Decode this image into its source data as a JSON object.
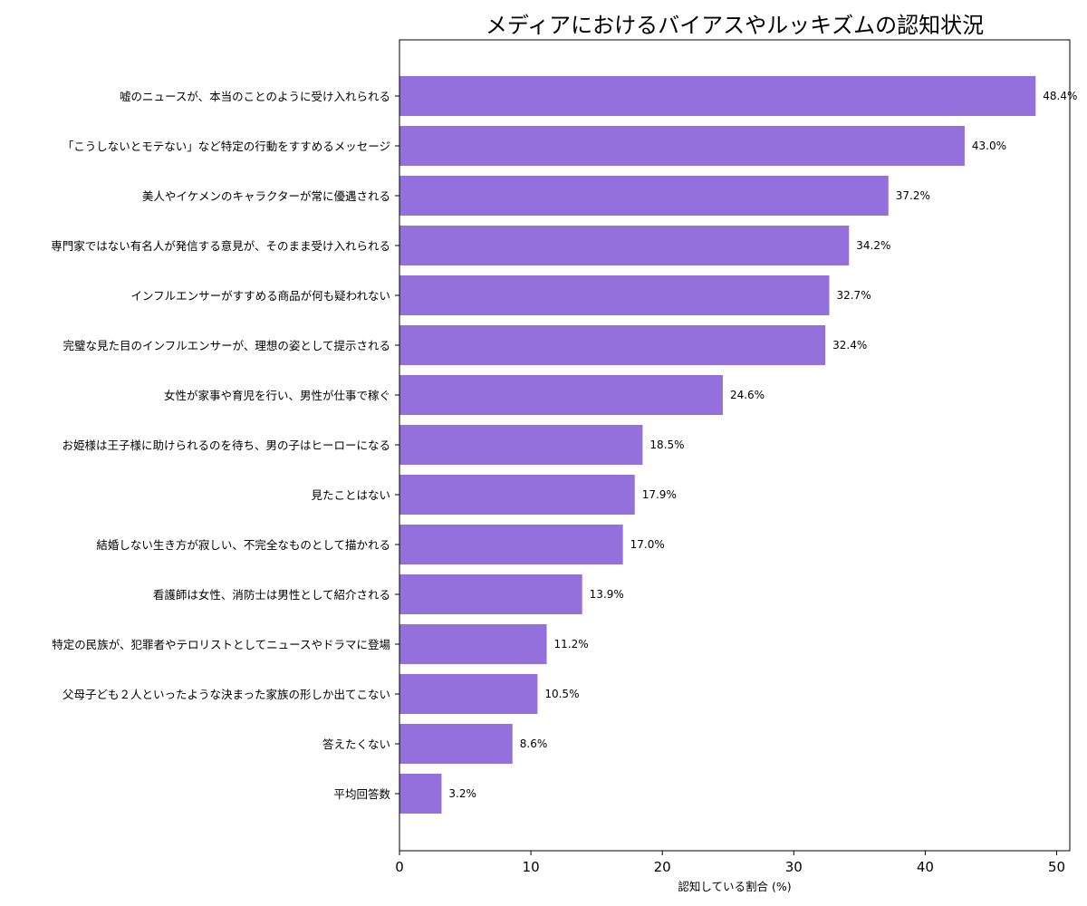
{
  "chart_data": {
    "type": "bar",
    "orientation": "horizontal",
    "title": "メディアにおけるバイアスやルッキズムの認知状況",
    "xlabel": "認知している割合 (%)",
    "ylabel": "",
    "xlim": [
      0,
      51
    ],
    "xticks": [
      0,
      10,
      20,
      30,
      40,
      50
    ],
    "grid": false,
    "bar_color": "#9370DB",
    "categories": [
      "嘘のニュースが、本当のことのように受け入れられる",
      "「こうしないとモテない」など特定の行動をすすめるメッセージ",
      "美人やイケメンのキャラクターが常に優遇される",
      "専門家ではない有名人が発信する意見が、そのまま受け入れられる",
      "インフルエンサーがすすめる商品が何も疑われない",
      "完璧な見た目のインフルエンサーが、理想の姿として提示される",
      "女性が家事や育児を行い、男性が仕事で稼ぐ",
      "お姫様は王子様に助けられるのを待ち、男の子はヒーローになる",
      "見たことはない",
      "結婚しない生き方が寂しい、不完全なものとして描かれる",
      "看護師は女性、消防士は男性として紹介される",
      "特定の民族が、犯罪者やテロリストとしてニュースやドラマに登場",
      "父母子ども２人といったような決まった家族の形しか出てこない",
      "答えたくない",
      "平均回答数"
    ],
    "values": [
      48.4,
      43.0,
      37.2,
      34.2,
      32.7,
      32.4,
      24.6,
      18.5,
      17.9,
      17.0,
      13.9,
      11.2,
      10.5,
      8.6,
      3.2
    ],
    "value_labels": [
      "48.4%",
      "43.0%",
      "37.2%",
      "34.2%",
      "32.7%",
      "32.4%",
      "24.6%",
      "18.5%",
      "17.9%",
      "17.0%",
      "13.9%",
      "11.2%",
      "10.5%",
      "8.6%",
      "3.2%"
    ]
  }
}
